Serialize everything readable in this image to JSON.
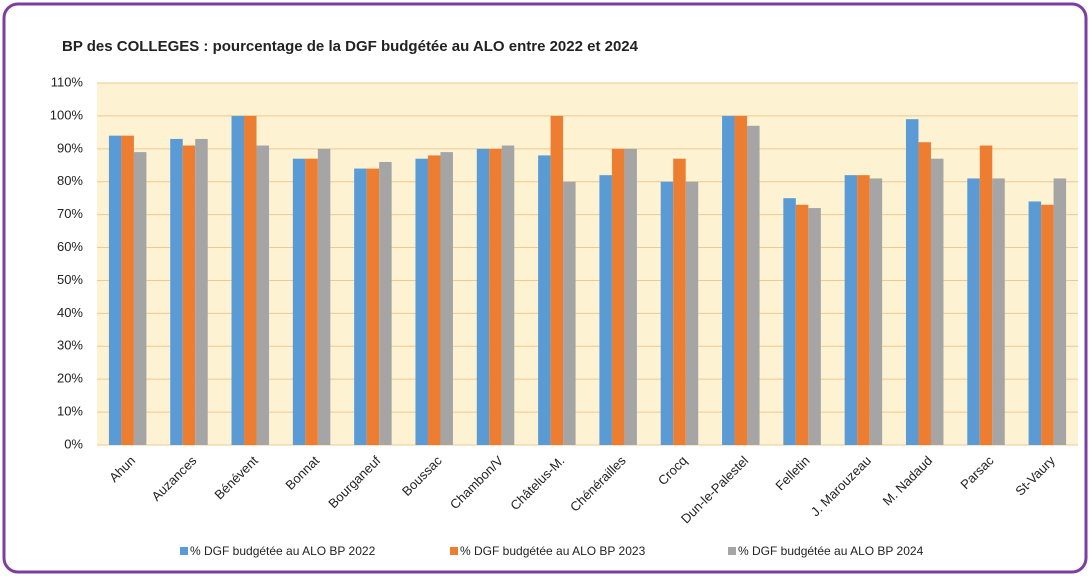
{
  "chart_data": {
    "type": "bar",
    "title": "BP des COLLEGES : pourcentage de la DGF budgétée au ALO entre 2022 et 2024",
    "categories": [
      "Ahun",
      "Auzances",
      "Bénévent",
      "Bonnat",
      "Bourganeuf",
      "Boussac",
      "Chambon/V",
      "Châtelus-M.",
      "Chénérailles",
      "Crocq",
      "Dun-le-Palestel",
      "Felletin",
      "J. Marouzeau",
      "M. Nadaud",
      "Parsac",
      "St-Vaury"
    ],
    "series": [
      {
        "name": "% DGF budgétée au ALO BP 2022",
        "color": "#5b9bd5",
        "values": [
          94,
          93,
          100,
          87,
          84,
          87,
          90,
          88,
          82,
          80,
          100,
          75,
          82,
          99,
          81,
          74
        ]
      },
      {
        "name": "% DGF budgétée au ALO BP 2023",
        "color": "#ed7d31",
        "values": [
          94,
          91,
          100,
          87,
          84,
          88,
          90,
          100,
          90,
          87,
          100,
          73,
          82,
          92,
          91,
          73
        ]
      },
      {
        "name": "% DGF budgétée au ALO BP 2024",
        "color": "#a5a5a5",
        "values": [
          89,
          93,
          91,
          90,
          86,
          89,
          91,
          80,
          90,
          80,
          97,
          72,
          81,
          87,
          81,
          81
        ]
      }
    ],
    "ylim": [
      0,
      110
    ],
    "yticks": [
      {
        "value": 0,
        "label": "0%"
      },
      {
        "value": 10,
        "label": "10%"
      },
      {
        "value": 20,
        "label": "20%"
      },
      {
        "value": 30,
        "label": "30%"
      },
      {
        "value": 40,
        "label": "40%"
      },
      {
        "value": 50,
        "label": "50%"
      },
      {
        "value": 60,
        "label": "60%"
      },
      {
        "value": 70,
        "label": "70%"
      },
      {
        "value": 80,
        "label": "80%"
      },
      {
        "value": 90,
        "label": "90%"
      },
      {
        "value": 100,
        "label": "100%"
      },
      {
        "value": 110,
        "label": "110%"
      }
    ],
    "grid": true,
    "legend": "bottom"
  }
}
